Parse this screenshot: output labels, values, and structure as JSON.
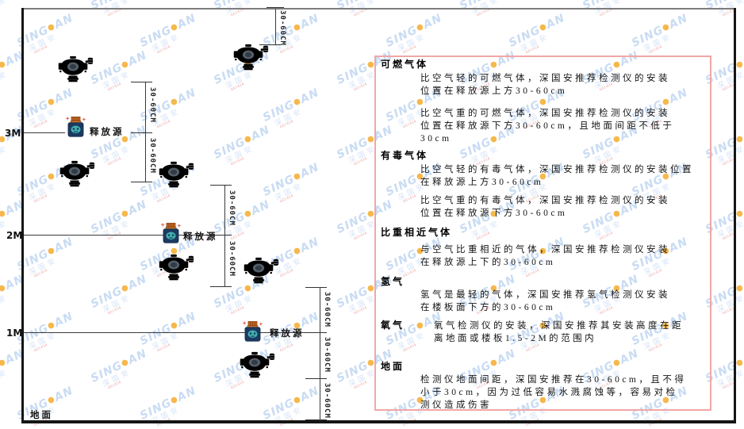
{
  "watermark": {
    "brand_left": "SING",
    "dot": "●",
    "brand_right": "AN",
    "chinese": "深国安",
    "code": "661434"
  },
  "diagram": {
    "scale_labels": [
      "3M",
      "2M",
      "1M"
    ],
    "ground_label": "地面",
    "release_source_label": "释放源",
    "dimension_label": "30-60CM",
    "colors": {
      "line": "#3a3a3a",
      "wall": "#151515",
      "panel_border": "#f2a6a6",
      "source_body": "#1b3a61",
      "source_cap": "#b95f1e",
      "source_face": "#43b0ac",
      "watermark_blue": "#c9dcf3",
      "watermark_dot": "#f6b84c"
    }
  },
  "panel": {
    "sections": [
      {
        "title": "可燃气体",
        "paragraphs": [
          "比空气轻的可燃气体，深国安推荐检测仪的安装\n位置在释放源上方30-60cm",
          "比空气重的可燃气体，深国安推荐检测仪的安装\n位置在释放源下方30-60cm，且地面间距不低于\n30cm"
        ]
      },
      {
        "title": "有毒气体",
        "paragraphs": [
          "比空气轻的有毒气体，深国安推荐检测仪的安装位置\n在释放源上方30-60cm",
          "比空气重的有毒气体，深国安推荐检测仪的安装\n位置在释放源下方30-60cm"
        ]
      },
      {
        "title": "比重相近气体",
        "paragraphs": [
          "与空气比重相近的气体，深国安推荐检测仪安装\n在释放源上下的30-60cm"
        ]
      },
      {
        "title": "氢气",
        "paragraphs": [
          "氢气是最轻的气体，深国安推荐氢气检测仪安装\n在楼板面下方的30-60cm"
        ]
      },
      {
        "title": "氧气",
        "inline": true,
        "paragraphs": [
          "氧气检测仪的安装，深国安推荐其安装高度在距\n离地面或楼板1.5-2M的范围内"
        ]
      },
      {
        "title": "地面",
        "paragraphs": [
          "检测仪地面间距，深国安推荐在30-60cm，且不得\n小于30cm，因为过低容易水溅腐蚀等，容易对检\n测仪造成伤害"
        ]
      }
    ]
  }
}
